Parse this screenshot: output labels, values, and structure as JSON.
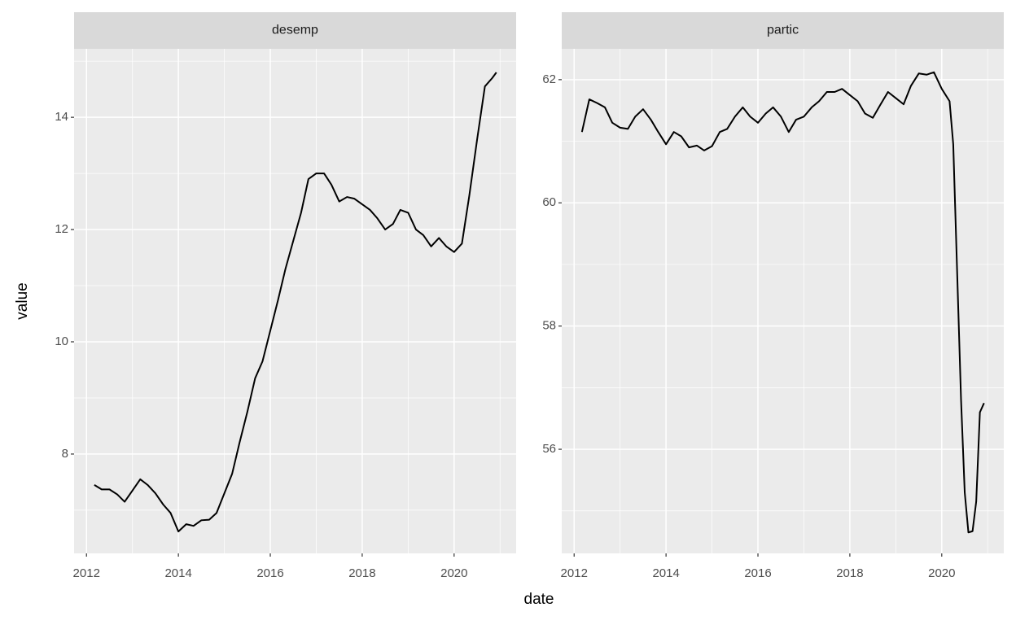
{
  "xlabel": "date",
  "ylabel": "value",
  "chart_data": [
    {
      "type": "line",
      "title": "desemp",
      "color": "#000000",
      "grid": true,
      "minor_grid": true,
      "xlim": [
        2011.73,
        2021.35
      ],
      "xticks": [
        2012,
        2014,
        2016,
        2018,
        2020
      ],
      "ylim": [
        6.23,
        15.22
      ],
      "yticks": [
        8,
        10,
        12,
        14
      ],
      "x": [
        2012.17,
        2012.33,
        2012.5,
        2012.67,
        2012.83,
        2013.0,
        2013.17,
        2013.33,
        2013.5,
        2013.67,
        2013.83,
        2014.0,
        2014.17,
        2014.33,
        2014.5,
        2014.67,
        2014.83,
        2015.0,
        2015.17,
        2015.33,
        2015.5,
        2015.67,
        2015.83,
        2016.0,
        2016.17,
        2016.33,
        2016.5,
        2016.67,
        2016.83,
        2017.0,
        2017.17,
        2017.33,
        2017.5,
        2017.67,
        2017.83,
        2018.0,
        2018.17,
        2018.33,
        2018.5,
        2018.67,
        2018.83,
        2019.0,
        2019.17,
        2019.33,
        2019.5,
        2019.67,
        2019.83,
        2020.0,
        2020.17,
        2020.33,
        2020.5,
        2020.67,
        2020.83,
        2020.92
      ],
      "values": [
        7.45,
        7.37,
        7.37,
        7.28,
        7.15,
        7.35,
        7.55,
        7.45,
        7.3,
        7.1,
        6.95,
        6.62,
        6.75,
        6.72,
        6.82,
        6.83,
        6.95,
        7.3,
        7.65,
        8.2,
        8.75,
        9.35,
        9.65,
        10.2,
        10.75,
        11.3,
        11.8,
        12.3,
        12.9,
        13.0,
        13.0,
        12.8,
        12.5,
        12.58,
        12.55,
        12.45,
        12.35,
        12.2,
        12.0,
        12.1,
        12.35,
        12.3,
        12.0,
        11.9,
        11.7,
        11.85,
        11.7,
        11.6,
        11.75,
        12.6,
        13.6,
        14.55,
        14.7,
        14.8
      ]
    },
    {
      "type": "line",
      "title": "partic",
      "color": "#000000",
      "grid": true,
      "minor_grid": true,
      "xlim": [
        2011.73,
        2021.35
      ],
      "xticks": [
        2012,
        2014,
        2016,
        2018,
        2020
      ],
      "ylim": [
        54.31,
        62.5
      ],
      "yticks": [
        56,
        58,
        60,
        62
      ],
      "x": [
        2012.17,
        2012.33,
        2012.5,
        2012.67,
        2012.83,
        2013.0,
        2013.17,
        2013.33,
        2013.5,
        2013.67,
        2013.83,
        2014.0,
        2014.17,
        2014.33,
        2014.5,
        2014.67,
        2014.83,
        2015.0,
        2015.17,
        2015.33,
        2015.5,
        2015.67,
        2015.83,
        2016.0,
        2016.17,
        2016.33,
        2016.5,
        2016.67,
        2016.83,
        2017.0,
        2017.17,
        2017.33,
        2017.5,
        2017.67,
        2017.83,
        2018.0,
        2018.17,
        2018.33,
        2018.5,
        2018.67,
        2018.83,
        2019.0,
        2019.17,
        2019.33,
        2019.5,
        2019.67,
        2019.83,
        2020.0,
        2020.17,
        2020.25,
        2020.42,
        2020.5,
        2020.58,
        2020.67,
        2020.75,
        2020.83,
        2020.92
      ],
      "values": [
        61.15,
        61.68,
        61.62,
        61.55,
        61.3,
        61.22,
        61.2,
        61.4,
        61.52,
        61.35,
        61.15,
        60.95,
        61.15,
        61.08,
        60.9,
        60.93,
        60.85,
        60.92,
        61.15,
        61.2,
        61.4,
        61.55,
        61.4,
        61.3,
        61.45,
        61.55,
        61.4,
        61.15,
        61.35,
        61.4,
        61.55,
        61.65,
        61.8,
        61.8,
        61.85,
        61.75,
        61.65,
        61.45,
        61.38,
        61.6,
        61.8,
        61.7,
        61.6,
        61.9,
        62.1,
        62.08,
        62.12,
        61.85,
        61.65,
        60.95,
        56.8,
        55.3,
        54.65,
        54.67,
        55.15,
        56.6,
        56.75
      ]
    }
  ]
}
